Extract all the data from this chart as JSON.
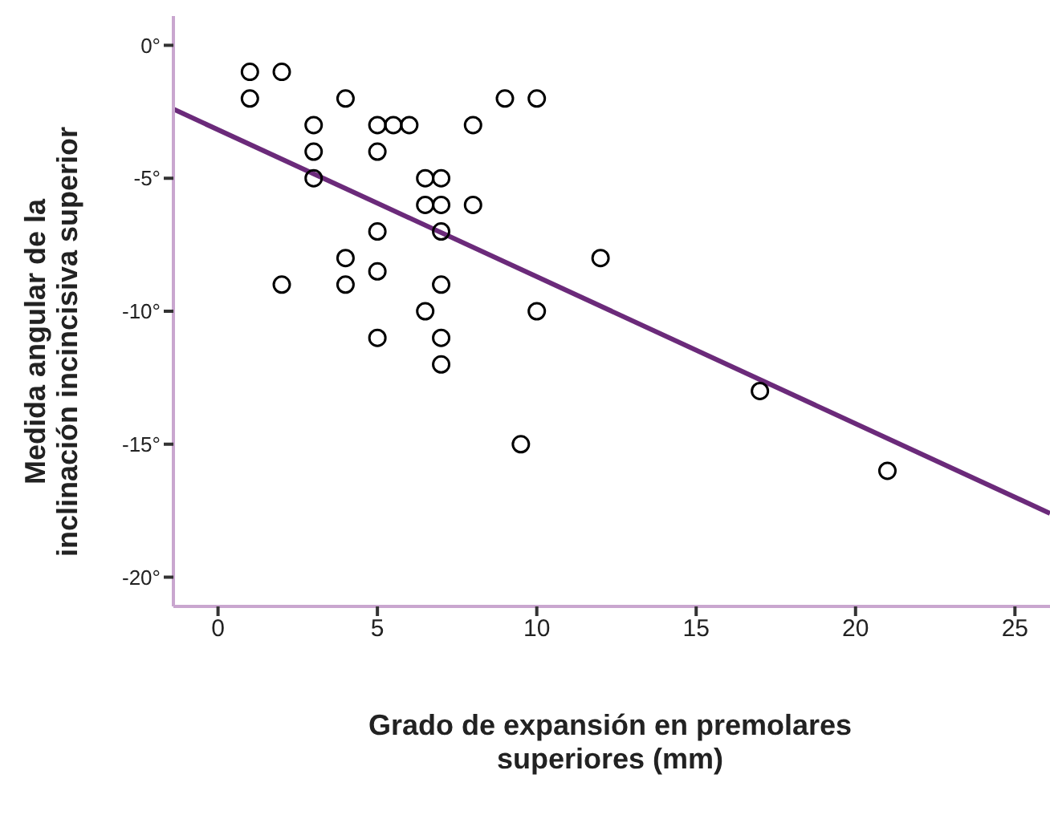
{
  "chart_data": {
    "type": "scatter",
    "xlabel": "Grado de expansión en premolares\nsuperiores (mm)",
    "ylabel": "Medida angular de la\ninclinación incincisiva superior",
    "xlim": [
      -1.4,
      26.1
    ],
    "ylim": [
      -21.1,
      1.1
    ],
    "xticks": [
      0,
      5,
      10,
      15,
      20,
      25
    ],
    "yticks": [
      {
        "value": 0,
        "label": "0°"
      },
      {
        "value": -5,
        "label": "-5°"
      },
      {
        "value": -10,
        "label": "-10°"
      },
      {
        "value": -15,
        "label": "-15°"
      },
      {
        "value": -20,
        "label": "-20°"
      }
    ],
    "grid": false,
    "legend": false,
    "marker": "circle",
    "series": [
      {
        "color": "#000000",
        "x": [
          1,
          2,
          1,
          4,
          9,
          10,
          3,
          5,
          5.5,
          6,
          8,
          3,
          5,
          3,
          6.5,
          7,
          6.5,
          7,
          8,
          5,
          7,
          12,
          4,
          5,
          2,
          4,
          7,
          6.5,
          10,
          5,
          7,
          7,
          9.5,
          17,
          21
        ],
        "values": [
          -1,
          -1,
          -2,
          -2,
          -2,
          -2,
          -3,
          -3,
          -3,
          -3,
          -3,
          -4,
          -4,
          -5,
          -5,
          -5,
          -6,
          -6,
          -6,
          -7,
          -7,
          -8,
          -8,
          -8.5,
          -9,
          -9,
          -9,
          -10,
          -10,
          -11,
          -11,
          -12,
          -15,
          -13,
          -16
        ]
      },
      {
        "type": "line",
        "color": "#6b2a7a",
        "line_style": "solid",
        "marker": "none",
        "x": [
          -1.4,
          26.1
        ],
        "values": [
          -2.4,
          -17.6
        ]
      }
    ]
  }
}
